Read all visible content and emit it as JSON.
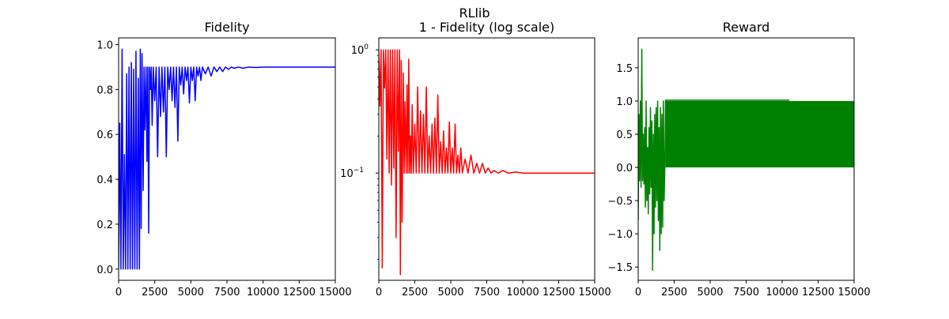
{
  "figure": {
    "suptitle": "RLlib"
  },
  "chart_data": [
    {
      "type": "line",
      "title": "Fidelity",
      "xlabel": "",
      "ylabel": "",
      "color": "#0000ff",
      "xlim": [
        0,
        15000
      ],
      "ylim": [
        -0.05,
        1.03
      ],
      "xscale": "linear",
      "yscale": "linear",
      "grid": false,
      "xticks": [
        0,
        2500,
        5000,
        7500,
        10000,
        12500,
        15000
      ],
      "xtick_labels": [
        "0",
        "2500",
        "5000",
        "7500",
        "10000",
        "12500",
        "15000"
      ],
      "yticks": [
        0.0,
        0.2,
        0.4,
        0.6,
        0.8,
        1.0
      ],
      "ytick_labels": [
        "0.0",
        "0.2",
        "0.4",
        "0.6",
        "0.8",
        "1.0"
      ],
      "series": [
        {
          "x": [
            0,
            80,
            160,
            240,
            320,
            400,
            480,
            560,
            640,
            720,
            800,
            880,
            960,
            1040,
            1120,
            1200,
            1280,
            1360,
            1440,
            1500,
            1560,
            1620,
            1700,
            1760,
            1820,
            1900,
            1960,
            2020,
            2080,
            2140,
            2200,
            2260,
            2320,
            2400,
            2500,
            2600,
            2700,
            2800,
            2900,
            3000,
            3100,
            3200,
            3300,
            3400,
            3500,
            3600,
            3700,
            3800,
            3900,
            4000,
            4100,
            4200,
            4300,
            4400,
            4500,
            4600,
            4700,
            4800,
            4900,
            5000,
            5100,
            5200,
            5300,
            5400,
            5500,
            5600,
            5700,
            5800,
            6000,
            6200,
            6400,
            6600,
            6800,
            7000,
            7200,
            7400,
            7600,
            7800,
            8000,
            8300,
            8600,
            9000,
            9500,
            10000,
            10500,
            11000,
            12000,
            13000,
            14000,
            15000
          ],
          "values": [
            0.0,
            0.65,
            0.0,
            0.98,
            0.0,
            0.51,
            0.0,
            0.87,
            0.0,
            0.9,
            0.0,
            0.92,
            0.0,
            0.89,
            0.0,
            0.97,
            0.0,
            0.85,
            0.0,
            0.98,
            0.18,
            0.96,
            0.35,
            0.9,
            0.62,
            0.9,
            0.48,
            0.9,
            0.16,
            0.9,
            0.8,
            0.9,
            0.64,
            0.9,
            0.75,
            0.9,
            0.5,
            0.9,
            0.68,
            0.9,
            0.7,
            0.9,
            0.5,
            0.9,
            0.8,
            0.9,
            0.75,
            0.9,
            0.72,
            0.9,
            0.57,
            0.9,
            0.82,
            0.9,
            0.78,
            0.9,
            0.84,
            0.9,
            0.74,
            0.9,
            0.84,
            0.9,
            0.75,
            0.9,
            0.86,
            0.9,
            0.84,
            0.9,
            0.87,
            0.9,
            0.86,
            0.9,
            0.88,
            0.9,
            0.88,
            0.9,
            0.89,
            0.9,
            0.895,
            0.9,
            0.895,
            0.9,
            0.898,
            0.9,
            0.9,
            0.9,
            0.9,
            0.9,
            0.9,
            0.9
          ]
        }
      ]
    },
    {
      "type": "line",
      "title": "1 - Fidelity (log scale)",
      "xlabel": "",
      "ylabel": "",
      "color": "#ff0000",
      "xlim": [
        0,
        15000
      ],
      "ylim": [
        0.0135,
        1.25
      ],
      "xscale": "linear",
      "yscale": "log",
      "grid": false,
      "xticks": [
        0,
        2500,
        5000,
        7500,
        10000,
        12500,
        15000
      ],
      "xtick_labels": [
        "0",
        "2500",
        "5000",
        "7500",
        "10000",
        "12500",
        "15000"
      ],
      "yticks": [
        0.1,
        1.0
      ],
      "ytick_labels": [
        "10^-1",
        "10^0"
      ],
      "series": [
        {
          "x": [
            0,
            80,
            160,
            240,
            320,
            400,
            480,
            560,
            640,
            720,
            800,
            880,
            960,
            1040,
            1120,
            1200,
            1280,
            1360,
            1440,
            1500,
            1560,
            1620,
            1700,
            1760,
            1820,
            1900,
            1960,
            2020,
            2080,
            2140,
            2200,
            2260,
            2320,
            2400,
            2500,
            2600,
            2700,
            2800,
            2900,
            3000,
            3100,
            3200,
            3300,
            3400,
            3500,
            3600,
            3700,
            3800,
            3900,
            4000,
            4100,
            4200,
            4300,
            4400,
            4500,
            4600,
            4700,
            4800,
            4900,
            5000,
            5100,
            5200,
            5300,
            5400,
            5500,
            5600,
            5700,
            5800,
            6000,
            6200,
            6400,
            6600,
            6800,
            7000,
            7200,
            7400,
            7600,
            7800,
            8000,
            8300,
            8600,
            9000,
            9500,
            10000,
            10500,
            11000,
            12000,
            13000,
            14000,
            15000
          ],
          "values": [
            1.0,
            0.35,
            1.0,
            0.017,
            1.0,
            0.49,
            1.0,
            0.13,
            1.0,
            0.1,
            1.0,
            0.08,
            1.0,
            0.11,
            1.0,
            0.03,
            1.0,
            0.15,
            1.0,
            0.015,
            0.82,
            0.04,
            0.65,
            0.1,
            0.38,
            0.1,
            0.52,
            0.1,
            0.84,
            0.1,
            0.2,
            0.1,
            0.36,
            0.1,
            0.25,
            0.1,
            0.5,
            0.1,
            0.32,
            0.1,
            0.3,
            0.1,
            0.5,
            0.1,
            0.2,
            0.1,
            0.25,
            0.1,
            0.28,
            0.1,
            0.43,
            0.1,
            0.18,
            0.1,
            0.22,
            0.1,
            0.16,
            0.1,
            0.26,
            0.1,
            0.16,
            0.1,
            0.25,
            0.1,
            0.14,
            0.1,
            0.16,
            0.1,
            0.13,
            0.1,
            0.14,
            0.1,
            0.12,
            0.1,
            0.12,
            0.1,
            0.11,
            0.1,
            0.105,
            0.1,
            0.105,
            0.1,
            0.102,
            0.1,
            0.1,
            0.1,
            0.1,
            0.1,
            0.1,
            0.1
          ]
        }
      ]
    },
    {
      "type": "line",
      "title": "Reward",
      "xlabel": "",
      "ylabel": "",
      "color": "#008000",
      "xlim": [
        0,
        15000
      ],
      "ylim": [
        -1.7,
        1.95
      ],
      "xscale": "linear",
      "yscale": "linear",
      "grid": false,
      "xticks": [
        0,
        2500,
        5000,
        7500,
        10000,
        12500,
        15000
      ],
      "xtick_labels": [
        "0",
        "2500",
        "5000",
        "7500",
        "10000",
        "12500",
        "15000"
      ],
      "yticks": [
        -1.5,
        -1.0,
        -0.5,
        0.0,
        0.5,
        1.0,
        1.5
      ],
      "ytick_labels": [
        "−1.5",
        "−1.0",
        "−0.5",
        "0.0",
        "0.5",
        "1.0",
        "1.5"
      ],
      "series": [
        {
          "x": [
            0,
            50,
            100,
            150,
            200,
            250,
            300,
            350,
            400,
            450,
            500,
            550,
            600,
            650,
            700,
            750,
            800,
            850,
            900,
            950,
            1000,
            1050,
            1100,
            1150,
            1200,
            1250,
            1300,
            1350,
            1400,
            1450,
            1500,
            1550,
            1600,
            1650,
            1700,
            1750,
            1800,
            1850,
            1900
          ],
          "values": [
            -0.8,
            0.8,
            -0.2,
            1.0,
            -0.3,
            1.78,
            -0.2,
            0.5,
            -0.25,
            0.6,
            -0.6,
            1.0,
            -0.5,
            0.3,
            -0.7,
            0.6,
            -0.4,
            0.9,
            -0.3,
            0.7,
            -1.55,
            0.5,
            -1.0,
            0.8,
            -0.6,
            0.9,
            -0.5,
            1.0,
            -0.8,
            0.6,
            -1.25,
            0.9,
            -1.0,
            0.8,
            -0.9,
            1.0,
            -0.5,
            0.0,
            1.02
          ],
          "band_after_x": 1900,
          "band_low": 0.0,
          "band_high": 1.0
        }
      ]
    }
  ]
}
